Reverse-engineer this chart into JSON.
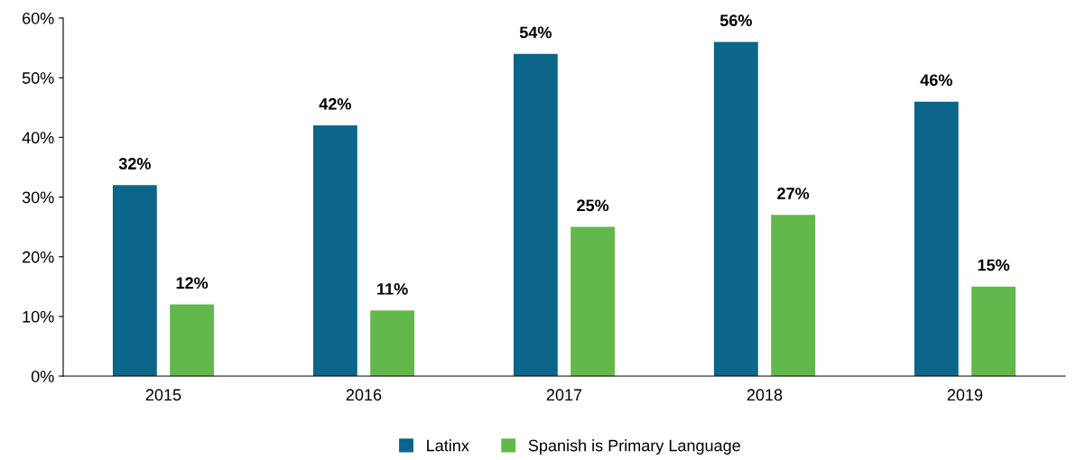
{
  "chart_data": {
    "type": "bar",
    "categories": [
      "2015",
      "2016",
      "2017",
      "2018",
      "2019"
    ],
    "series": [
      {
        "name": "Latinx",
        "color": "#0b6689",
        "values": [
          32,
          42,
          54,
          56,
          46
        ],
        "value_labels": [
          "32%",
          "42%",
          "54%",
          "56%",
          "46%"
        ]
      },
      {
        "name": "Spanish is Primary Language",
        "color": "#62b84a",
        "values": [
          12,
          11,
          25,
          27,
          15
        ],
        "value_labels": [
          "12%",
          "11%",
          "25%",
          "27%",
          "15%"
        ]
      }
    ],
    "ylim": [
      0,
      60
    ],
    "yticks": [
      {
        "value": 0,
        "label": "0%"
      },
      {
        "value": 10,
        "label": "10%"
      },
      {
        "value": 20,
        "label": "20%"
      },
      {
        "value": 30,
        "label": "30%"
      },
      {
        "value": 40,
        "label": "40%"
      },
      {
        "value": 50,
        "label": "50%"
      },
      {
        "value": 60,
        "label": "60%"
      }
    ],
    "grid": false,
    "legend": "bottom"
  }
}
